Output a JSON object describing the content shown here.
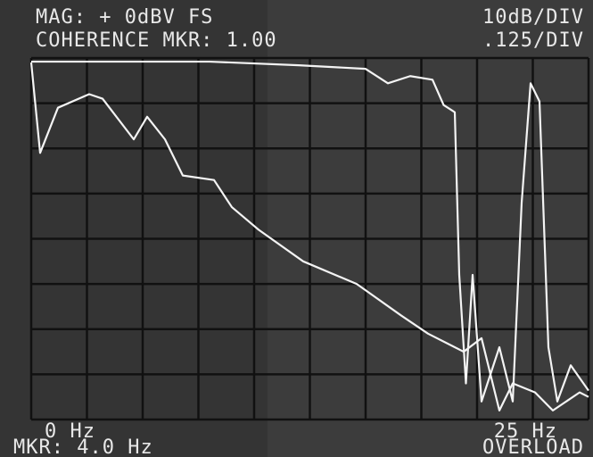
{
  "chart_data": {
    "type": "line",
    "annotations": [
      "MAG: + 0dBV FS",
      "10dB/DIV",
      "COHERENCE MKR: 1.00",
      ".125/DIV",
      "0 Hz",
      "25 Hz",
      "MKR: 4.0 Hz",
      "OVERLOAD"
    ],
    "xlim": [
      0,
      25
    ],
    "ylim": [
      -80,
      0
    ],
    "y2lim": [
      0,
      1
    ],
    "grid": true,
    "series": [
      {
        "name": "MAG",
        "color": "#f4f4f4",
        "x": [
          0,
          0.4,
          1.2,
          2.6,
          3.2,
          4.6,
          5.2,
          6,
          6.8,
          8.2,
          9,
          10.2,
          12.2,
          14.6,
          16.6,
          17.8,
          19.4,
          20.2,
          21,
          21.6,
          22.6,
          23.4,
          24.6,
          25
        ],
        "values": [
          -1,
          -21,
          -11,
          -8,
          -9,
          -18,
          -13,
          -18,
          -26,
          -27,
          -33,
          -38,
          -45,
          -50,
          -57,
          -61,
          -65,
          -62,
          -78,
          -72,
          -74,
          -78,
          -74,
          -75
        ]
      },
      {
        "name": "COHERENCE",
        "color": "#f4f4f4",
        "axis": "y2",
        "x": [
          0,
          2,
          8,
          12,
          15,
          16,
          17,
          18,
          18.5,
          19,
          19.2,
          19.5,
          19.8,
          20.2,
          21,
          21.6,
          22,
          22.4,
          22.8,
          23.2,
          23.6,
          24.2,
          25
        ],
        "values": [
          0.99,
          0.99,
          0.99,
          0.98,
          0.97,
          0.93,
          0.95,
          0.94,
          0.87,
          0.85,
          0.4,
          0.1,
          0.4,
          0.05,
          0.2,
          0.05,
          0.6,
          0.93,
          0.88,
          0.2,
          0.05,
          0.15,
          0.08
        ]
      }
    ]
  }
}
